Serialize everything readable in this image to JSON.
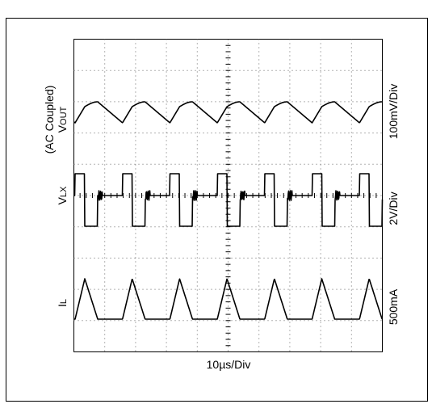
{
  "figure": {
    "traces": [
      {
        "label": "V",
        "subscript": "OUT",
        "note": "(AC Coupled)",
        "scale": "100mV/Div"
      },
      {
        "label": "V",
        "subscript": "LX",
        "scale": "2V/Div"
      },
      {
        "label": "I",
        "subscript": "L",
        "scale": "500mA"
      }
    ],
    "time_scale": "10µs/Div"
  }
}
